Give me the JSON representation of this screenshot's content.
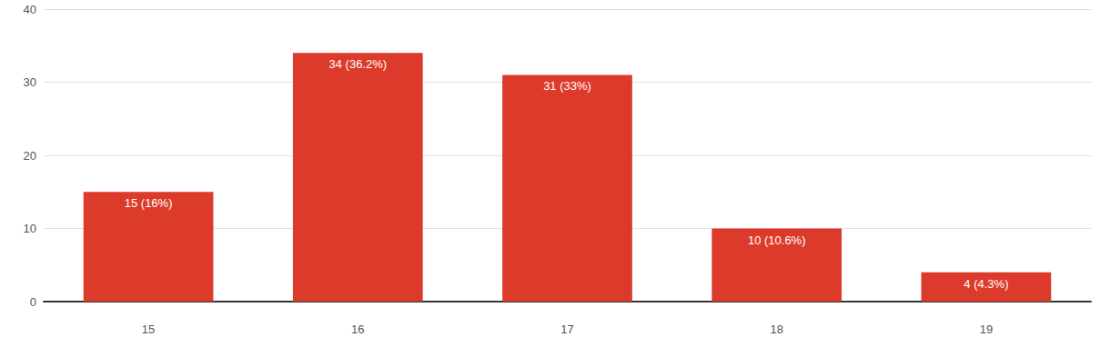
{
  "chart_data": {
    "type": "bar",
    "categories": [
      "15",
      "16",
      "17",
      "18",
      "19"
    ],
    "values": [
      15,
      34,
      31,
      10,
      4
    ],
    "value_labels": [
      "15 (16%)",
      "34 (36.2%)",
      "31 (33%)",
      "10 (10.6%)",
      "4 (4.3%)"
    ],
    "color": "#dc3b2b",
    "ylim": [
      0,
      40
    ],
    "yticks": [
      0,
      10,
      20,
      30,
      40
    ],
    "grid": true,
    "data_labels": true
  }
}
